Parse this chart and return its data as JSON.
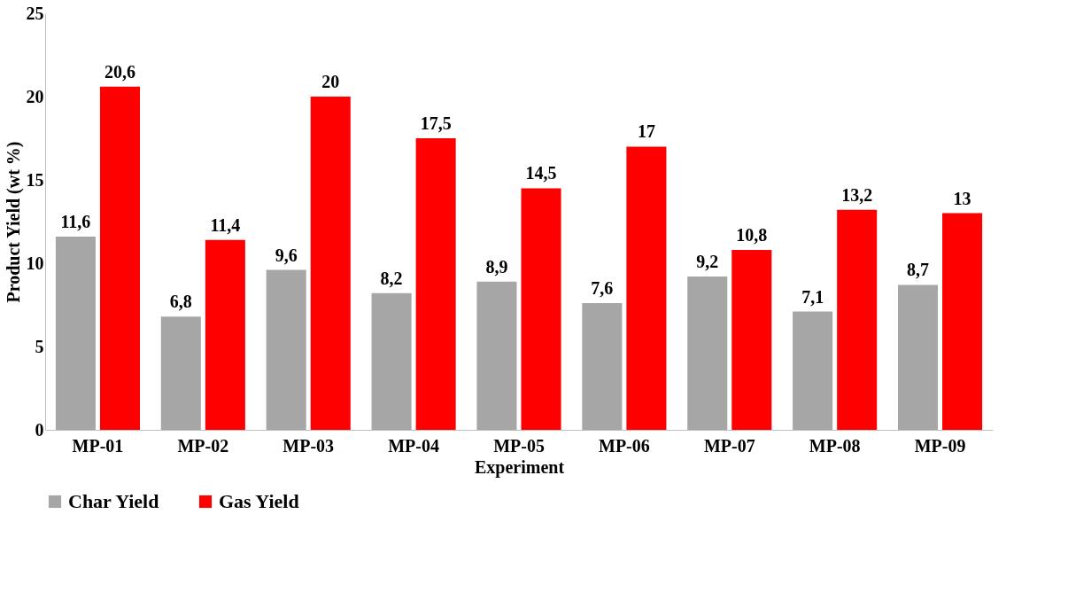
{
  "chart_data": {
    "type": "bar",
    "xlabel": "Experiment",
    "ylabel": "Product Yield (wt %)",
    "categories": [
      "MP-01",
      "MP-02",
      "MP-03",
      "MP-04",
      "MP-05",
      "MP-06",
      "MP-07",
      "MP-08",
      "MP-09"
    ],
    "series": [
      {
        "name": "Char Yield",
        "color": "#a6a6a6",
        "values": [
          11.6,
          6.8,
          9.6,
          8.2,
          8.9,
          7.6,
          9.2,
          7.1,
          8.7
        ],
        "value_labels": [
          "11,6",
          "6,8",
          "9,6",
          "8,2",
          "8,9",
          "7,6",
          "9,2",
          "7,1",
          "8,7"
        ]
      },
      {
        "name": "Gas Yield",
        "color": "#ff0000",
        "values": [
          20.6,
          11.4,
          20,
          17.5,
          14.5,
          17,
          10.8,
          13.2,
          13
        ],
        "value_labels": [
          "20,6",
          "11,4",
          "20",
          "17,5",
          "14,5",
          "17",
          "10,8",
          "13,2",
          "13"
        ]
      }
    ],
    "ylim": [
      0,
      25
    ],
    "yticks": [
      0,
      5,
      10,
      15,
      20,
      25
    ],
    "grid": false,
    "legend": "bottom"
  }
}
